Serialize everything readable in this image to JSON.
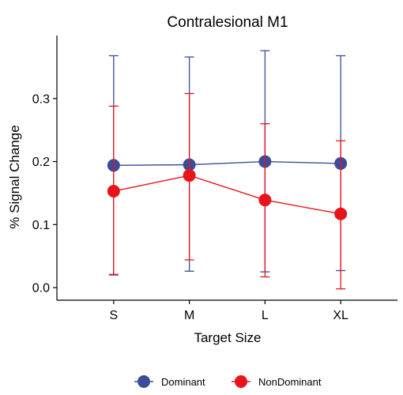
{
  "chart_data": {
    "type": "line",
    "title": "Contralesional M1",
    "xlabel": "Target Size",
    "ylabel": "% Signal Change",
    "categories": [
      "S",
      "M",
      "L",
      "XL"
    ],
    "ylim": [
      -0.02,
      0.4
    ],
    "yticks": [
      0.0,
      0.1,
      0.2,
      0.3
    ],
    "ytick_labels": [
      "0.0",
      "0.1",
      "0.2",
      "0.3"
    ],
    "grid": false,
    "legend_position": "bottom",
    "series": [
      {
        "name": "Dominant",
        "color": "#3B4D98",
        "values": [
          0.194,
          0.195,
          0.2,
          0.197
        ],
        "error_low": [
          0.02,
          0.026,
          0.025,
          0.027
        ],
        "error_high": [
          0.368,
          0.366,
          0.376,
          0.368
        ]
      },
      {
        "name": "NonDominant",
        "color": "#E8141B",
        "values": [
          0.153,
          0.178,
          0.139,
          0.117
        ],
        "error_low": [
          0.021,
          0.044,
          0.017,
          -0.002
        ],
        "error_high": [
          0.288,
          0.308,
          0.26,
          0.233
        ]
      }
    ]
  }
}
